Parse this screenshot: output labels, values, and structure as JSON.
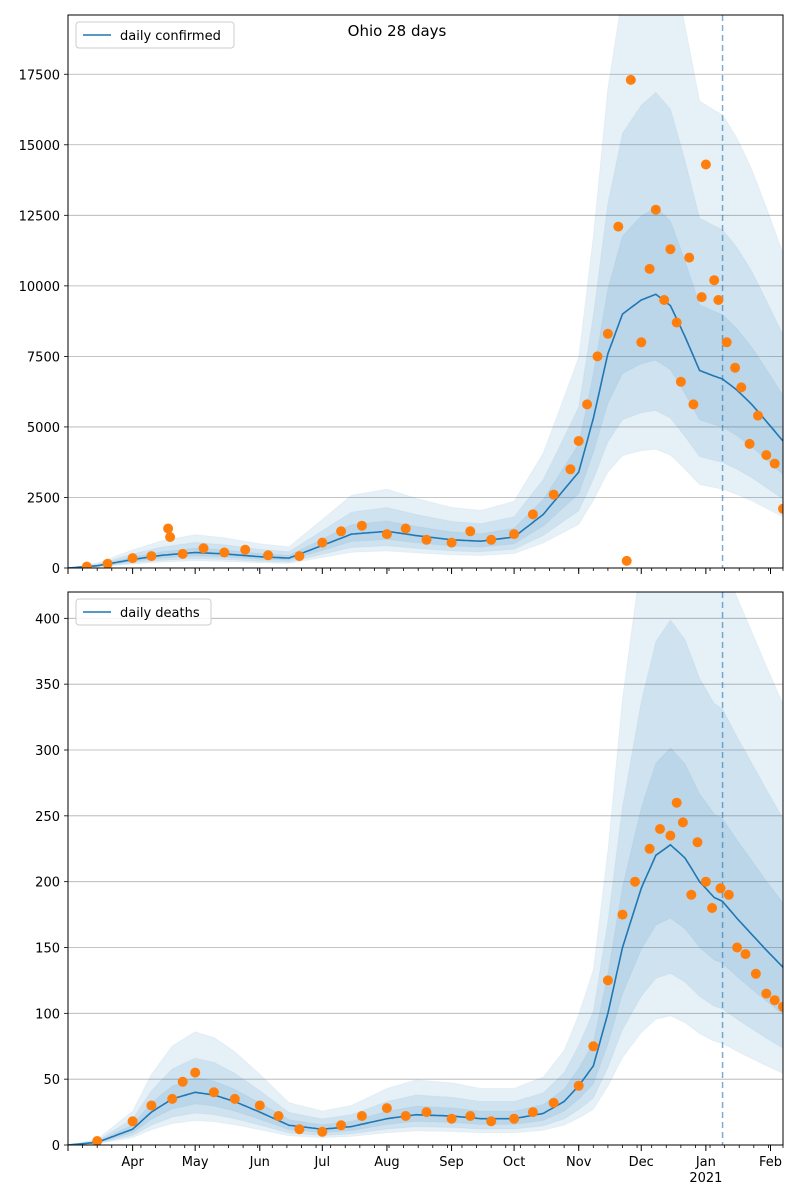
{
  "title": "Ohio 28 days",
  "colors": {
    "model_line": "#1f77b4",
    "band": "#1f77b4",
    "observed": "#ff7f0e",
    "forecast_line": "#1f77b4",
    "grid": "#b0b0b0"
  },
  "x_axis": {
    "month_labels": [
      "Apr",
      "May",
      "Jun",
      "Jul",
      "Aug",
      "Sep",
      "Oct",
      "Nov",
      "Dec",
      "Jan",
      "Feb"
    ],
    "year_label": "2021"
  },
  "chart_data": [
    {
      "type": "line",
      "title": "Ohio 28 days",
      "legend": [
        "daily confirmed"
      ],
      "legend_position": "top-left",
      "grid": "horizontal",
      "xlim": [
        "2020-03-01",
        "2021-02-07"
      ],
      "ylim": [
        0,
        19600
      ],
      "yticks": [
        0,
        2500,
        5000,
        7500,
        10000,
        12500,
        15000,
        17500
      ],
      "forecast_start": "2021-01-09",
      "uncertainty_bands": 3,
      "series": [
        {
          "name": "daily confirmed",
          "kind": "model",
          "x": [
            "2020-03-01",
            "2020-03-15",
            "2020-04-01",
            "2020-04-15",
            "2020-05-01",
            "2020-05-15",
            "2020-06-01",
            "2020-06-15",
            "2020-07-01",
            "2020-07-15",
            "2020-08-01",
            "2020-08-15",
            "2020-09-01",
            "2020-09-15",
            "2020-10-01",
            "2020-10-15",
            "2020-11-01",
            "2020-11-08",
            "2020-11-15",
            "2020-11-22",
            "2020-12-01",
            "2020-12-08",
            "2020-12-15",
            "2020-12-22",
            "2020-12-29",
            "2021-01-05",
            "2021-01-09",
            "2021-01-16",
            "2021-01-23",
            "2021-01-30",
            "2021-02-07"
          ],
          "y": [
            0,
            80,
            300,
            450,
            550,
            500,
            400,
            350,
            800,
            1200,
            1300,
            1150,
            1000,
            950,
            1100,
            1900,
            3400,
            5300,
            7600,
            9000,
            9500,
            9700,
            9300,
            8200,
            7000,
            6800,
            6700,
            6300,
            5800,
            5200,
            4500
          ]
        },
        {
          "name": "observed",
          "kind": "observed",
          "x": [
            "2020-03-10",
            "2020-03-20",
            "2020-04-01",
            "2020-04-10",
            "2020-04-18",
            "2020-04-19",
            "2020-04-25",
            "2020-05-05",
            "2020-05-15",
            "2020-05-25",
            "2020-06-05",
            "2020-06-20",
            "2020-07-01",
            "2020-07-10",
            "2020-07-20",
            "2020-08-01",
            "2020-08-10",
            "2020-08-20",
            "2020-09-01",
            "2020-09-10",
            "2020-09-20",
            "2020-10-01",
            "2020-10-10",
            "2020-10-20",
            "2020-10-28",
            "2020-11-01",
            "2020-11-05",
            "2020-11-10",
            "2020-11-15",
            "2020-11-20",
            "2020-11-24",
            "2020-11-26",
            "2020-12-01",
            "2020-12-05",
            "2020-12-08",
            "2020-12-12",
            "2020-12-15",
            "2020-12-18",
            "2020-12-20",
            "2020-12-24",
            "2020-12-26",
            "2020-12-30",
            "2021-01-01",
            "2021-01-05",
            "2021-01-07",
            "2021-01-11",
            "2021-01-15",
            "2021-01-18",
            "2021-01-22",
            "2021-01-26",
            "2021-01-30",
            "2021-02-03",
            "2021-02-07"
          ],
          "y": [
            50,
            150,
            350,
            420,
            1400,
            1100,
            500,
            700,
            550,
            650,
            450,
            420,
            900,
            1300,
            1500,
            1200,
            1400,
            1000,
            900,
            1300,
            1000,
            1200,
            1900,
            2600,
            3500,
            4500,
            5800,
            7500,
            8300,
            12100,
            250,
            17300,
            8000,
            10600,
            12700,
            9500,
            11300,
            8700,
            6600,
            11000,
            5800,
            9600,
            14300,
            10200,
            9500,
            8000,
            7100,
            6400,
            4400,
            5400,
            4000,
            3700,
            2100
          ]
        }
      ]
    },
    {
      "type": "line",
      "legend": [
        "daily deaths"
      ],
      "legend_position": "top-left",
      "grid": "horizontal",
      "xlim": [
        "2020-03-01",
        "2021-02-07"
      ],
      "ylim": [
        0,
        420
      ],
      "yticks": [
        0,
        50,
        100,
        150,
        200,
        250,
        300,
        350,
        400
      ],
      "forecast_start": "2021-01-09",
      "uncertainty_bands": 3,
      "series": [
        {
          "name": "daily deaths",
          "kind": "model",
          "x": [
            "2020-03-01",
            "2020-03-15",
            "2020-04-01",
            "2020-04-10",
            "2020-04-20",
            "2020-05-01",
            "2020-05-10",
            "2020-05-20",
            "2020-06-01",
            "2020-06-15",
            "2020-07-01",
            "2020-07-15",
            "2020-08-01",
            "2020-08-15",
            "2020-09-01",
            "2020-09-15",
            "2020-10-01",
            "2020-10-15",
            "2020-10-25",
            "2020-11-01",
            "2020-11-08",
            "2020-11-15",
            "2020-11-22",
            "2020-12-01",
            "2020-12-08",
            "2020-12-15",
            "2020-12-22",
            "2020-12-29",
            "2021-01-05",
            "2021-01-09",
            "2021-01-16",
            "2021-01-23",
            "2021-01-30",
            "2021-02-07"
          ],
          "y": [
            0,
            2,
            12,
            25,
            35,
            40,
            38,
            33,
            25,
            15,
            12,
            14,
            20,
            23,
            22,
            20,
            20,
            24,
            33,
            45,
            60,
            100,
            150,
            195,
            220,
            228,
            218,
            200,
            188,
            185,
            172,
            160,
            148,
            135
          ]
        },
        {
          "name": "observed",
          "kind": "observed",
          "x": [
            "2020-03-15",
            "2020-04-01",
            "2020-04-10",
            "2020-04-20",
            "2020-04-25",
            "2020-05-01",
            "2020-05-10",
            "2020-05-20",
            "2020-06-01",
            "2020-06-10",
            "2020-06-20",
            "2020-07-01",
            "2020-07-10",
            "2020-07-20",
            "2020-08-01",
            "2020-08-10",
            "2020-08-20",
            "2020-09-01",
            "2020-09-10",
            "2020-09-20",
            "2020-10-01",
            "2020-10-10",
            "2020-10-20",
            "2020-11-01",
            "2020-11-08",
            "2020-11-15",
            "2020-11-22",
            "2020-11-28",
            "2020-12-05",
            "2020-12-10",
            "2020-12-15",
            "2020-12-18",
            "2020-12-21",
            "2020-12-25",
            "2020-12-28",
            "2021-01-01",
            "2021-01-04",
            "2021-01-08",
            "2021-01-12",
            "2021-01-16",
            "2021-01-20",
            "2021-01-25",
            "2021-01-30",
            "2021-02-03",
            "2021-02-07"
          ],
          "y": [
            3,
            18,
            30,
            35,
            48,
            55,
            40,
            35,
            30,
            22,
            12,
            10,
            15,
            22,
            28,
            22,
            25,
            20,
            22,
            18,
            20,
            25,
            32,
            45,
            75,
            125,
            175,
            200,
            225,
            240,
            235,
            260,
            245,
            190,
            230,
            200,
            180,
            195,
            190,
            150,
            145,
            130,
            115,
            110,
            105
          ]
        }
      ]
    }
  ]
}
